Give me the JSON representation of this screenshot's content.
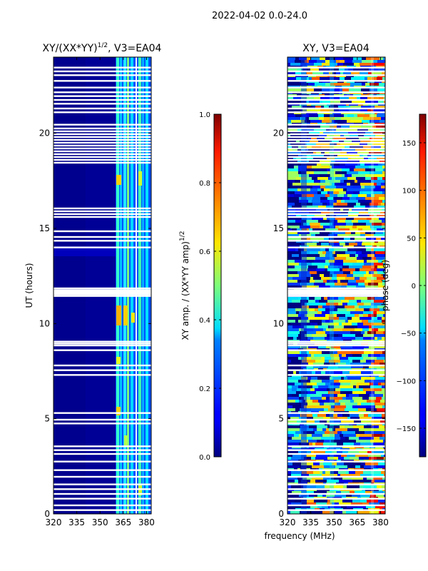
{
  "figure_title": "2022-04-02 0.0-24.0",
  "xlabel_common": "frequency (MHz)",
  "chart_data": [
    {
      "type": "heatmap",
      "title": "XY/(XX*YY)",
      "title_exponent": "1/2",
      "title_suffix": ", V3=EA04",
      "ylabel": "UT (hours)",
      "x_ticks": [
        "320",
        "335",
        "350",
        "365",
        "380"
      ],
      "x_tick_values": [
        320,
        335,
        350,
        365,
        380
      ],
      "xlim": [
        320,
        383
      ],
      "y_ticks": [
        "0",
        "5",
        "10",
        "15",
        "20"
      ],
      "y_tick_values": [
        0,
        5,
        10,
        15,
        20
      ],
      "ylim": [
        0,
        24
      ],
      "colorbar": {
        "label": "XY amp. / (XX*YY amp)",
        "label_exponent": "1/2",
        "ticks": [
          "0.0",
          "0.2",
          "0.4",
          "0.6",
          "0.8",
          "1.0"
        ],
        "tick_values": [
          0.0,
          0.2,
          0.4,
          0.6,
          0.8,
          1.0
        ],
        "range": [
          0.0,
          1.0
        ],
        "colormap": "jet"
      }
    },
    {
      "type": "heatmap",
      "title": "XY, V3=EA04",
      "x_ticks": [
        "320",
        "335",
        "350",
        "365",
        "380"
      ],
      "x_tick_values": [
        320,
        335,
        350,
        365,
        380
      ],
      "xlim": [
        320,
        383
      ],
      "y_ticks": [
        "0",
        "5",
        "10",
        "15",
        "20"
      ],
      "y_tick_values": [
        0,
        5,
        10,
        15,
        20
      ],
      "ylim": [
        0,
        24
      ],
      "colorbar": {
        "label": "phase (deg)",
        "ticks": [
          "−150",
          "−100",
          "−50",
          "0",
          "50",
          "100",
          "150"
        ],
        "tick_values": [
          -150,
          -100,
          -50,
          0,
          50,
          100,
          150
        ],
        "range": [
          -180,
          180
        ],
        "colormap": "jet"
      }
    }
  ],
  "data_gaps_ut_hours": [
    0.2,
    0.45,
    0.8,
    1.05,
    1.3,
    1.55,
    1.95,
    2.3,
    2.75,
    3.15,
    3.35,
    3.55,
    4.75,
    4.95,
    5.3,
    7.3,
    7.55,
    7.8,
    8.6,
    8.85,
    8.95,
    9.05,
    11.45,
    11.55,
    11.65,
    11.75,
    11.85,
    14.0,
    14.35,
    14.55,
    14.85,
    15.6,
    15.75,
    15.9,
    16.05,
    18.45,
    18.6,
    18.75,
    18.9,
    19.05,
    19.2,
    19.35,
    19.5,
    19.65,
    19.8,
    19.95,
    20.1,
    20.25,
    20.45,
    21.1,
    21.3,
    21.55,
    21.75,
    21.95,
    22.15,
    22.4,
    22.75,
    23.05,
    23.25,
    23.45
  ]
}
